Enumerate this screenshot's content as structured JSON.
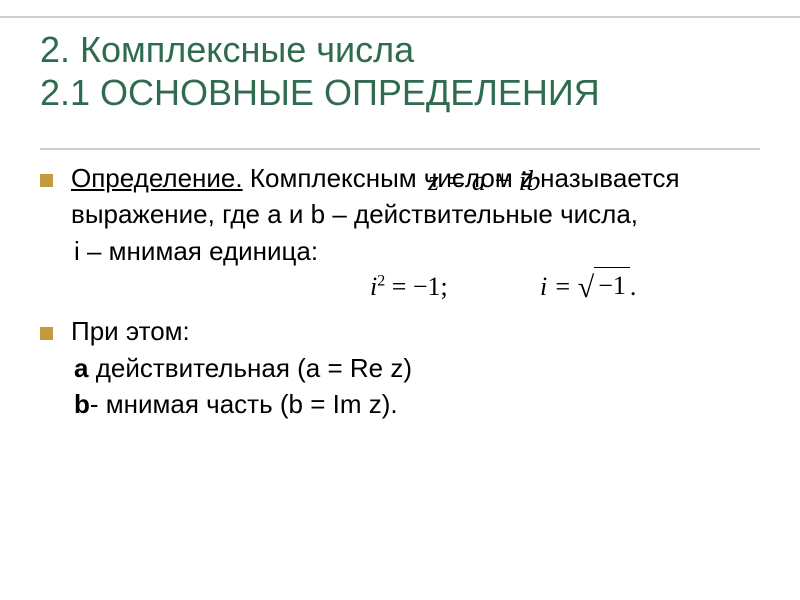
{
  "colors": {
    "title": "#2e6b4f",
    "bullet": "#c39a3e",
    "rule": "#d0d0d0",
    "text": "#000000",
    "background": "#ffffff"
  },
  "title": {
    "line1": "2. Комплексные числа",
    "line2": "2.1 ОСНОВНЫЕ ОПРЕДЕЛЕНИЯ",
    "fontsize": 36
  },
  "body": {
    "fontsize": 26,
    "def_label": "Определение.",
    "def_text_part1": " Комплексным числом z называется выражение",
    "def_text_part2": ", где a и b – действительные числа,",
    "formula_z": "z = a + ib",
    "line_i": "i – мнимая единица:",
    "formula_i2": "i",
    "formula_i2_sup": "2",
    "formula_i2_rest": " = −1;",
    "formula_isqrt_lhs": "i = ",
    "formula_isqrt_under": "−1",
    "formula_isqrt_period": ".",
    "at_this": "При этом:",
    "line_a_bold": "a",
    "line_a_rest": " действительная (a = Re z)",
    "line_b_bold": "b",
    "line_b_rest": "- мнимая часть (b = Im z)."
  }
}
